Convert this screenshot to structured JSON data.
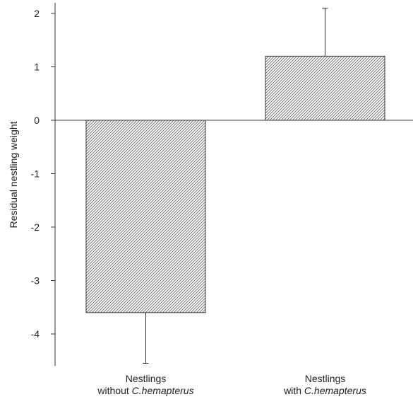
{
  "chart_data": {
    "type": "bar",
    "ylabel": "Residual nestling weight",
    "ylim": [
      -4.6,
      2.2
    ],
    "yticks": [
      2,
      1,
      0,
      -1,
      -2,
      -3,
      -4
    ],
    "ytick_labels": [
      "2",
      "1",
      "0",
      "-1",
      "-2",
      "-3",
      "-4"
    ],
    "categories": [
      {
        "line1": "Nestlings",
        "line2_prefix": "without ",
        "line2_species": "C.hemapterus"
      },
      {
        "line1": "Nestlings",
        "line2_prefix": "with ",
        "line2_species": "C.hemapterus"
      }
    ],
    "values": [
      -3.6,
      1.2
    ],
    "errors": [
      0.95,
      0.9
    ],
    "bar_pattern": "diagonal-hatch",
    "bar_stroke_color": "#333333",
    "hatch_color": "#555555",
    "axis_color": "#333333",
    "grid": false
  }
}
